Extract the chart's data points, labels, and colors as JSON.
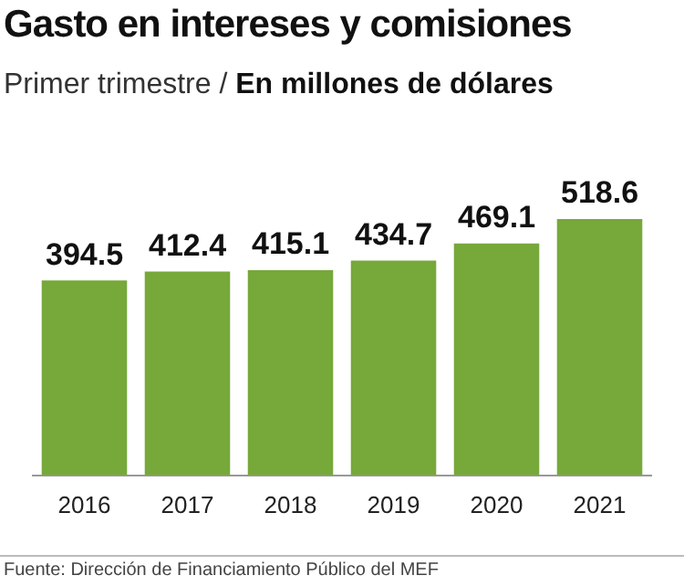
{
  "chart_data": {
    "type": "bar",
    "title": "Gasto en intereses y comisiones",
    "subtitle": "Primer trimestre / En millones de dólares",
    "categories": [
      "2016",
      "2017",
      "2018",
      "2019",
      "2020",
      "2021"
    ],
    "values": [
      394.5,
      412.4,
      415.1,
      434.7,
      469.1,
      518.6
    ],
    "color": "#76a83a",
    "data_labels": true,
    "annotations": [
      "Fuente: Dirección de Financiamiento Público del MEF"
    ]
  }
}
